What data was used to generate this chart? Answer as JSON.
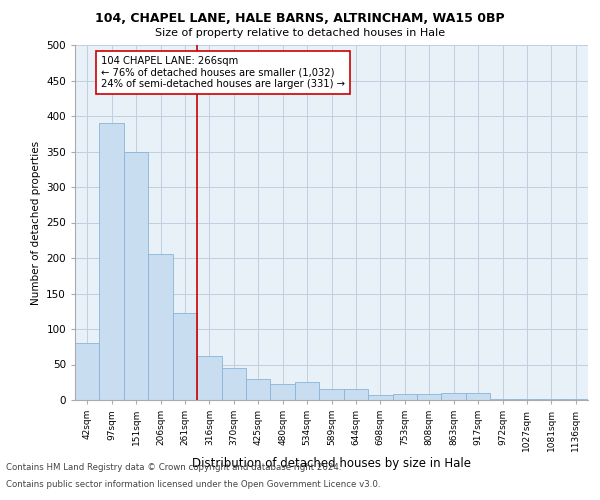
{
  "title1": "104, CHAPEL LANE, HALE BARNS, ALTRINCHAM, WA15 0BP",
  "title2": "Size of property relative to detached houses in Hale",
  "xlabel": "Distribution of detached houses by size in Hale",
  "ylabel": "Number of detached properties",
  "bar_color": "#c9ddf0",
  "bar_edge_color": "#8ab4d8",
  "grid_color": "#c0d0e0",
  "background_color": "#e8f0f8",
  "categories": [
    "42sqm",
    "97sqm",
    "151sqm",
    "206sqm",
    "261sqm",
    "316sqm",
    "370sqm",
    "425sqm",
    "480sqm",
    "534sqm",
    "589sqm",
    "644sqm",
    "698sqm",
    "753sqm",
    "808sqm",
    "863sqm",
    "917sqm",
    "972sqm",
    "1027sqm",
    "1081sqm",
    "1136sqm"
  ],
  "values": [
    80,
    390,
    350,
    205,
    123,
    62,
    45,
    30,
    22,
    25,
    15,
    15,
    7,
    8,
    8,
    10,
    10,
    2,
    1,
    1,
    1
  ],
  "vline_position": 4.5,
  "vline_color": "#cc0000",
  "annotation_text": "104 CHAPEL LANE: 266sqm\n← 76% of detached houses are smaller (1,032)\n24% of semi-detached houses are larger (331) →",
  "annotation_box_color": "#ffffff",
  "annotation_edge_color": "#cc0000",
  "footnote1": "Contains HM Land Registry data © Crown copyright and database right 2024.",
  "footnote2": "Contains public sector information licensed under the Open Government Licence v3.0.",
  "ylim": [
    0,
    500
  ],
  "yticks": [
    0,
    50,
    100,
    150,
    200,
    250,
    300,
    350,
    400,
    450,
    500
  ]
}
